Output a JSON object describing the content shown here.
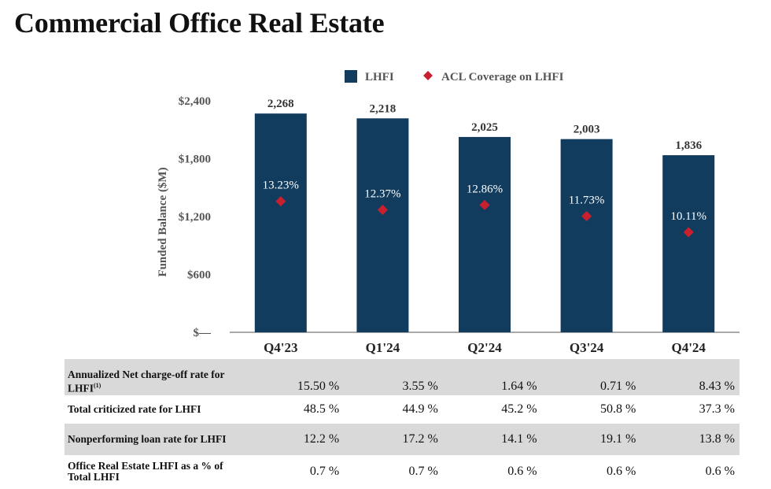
{
  "page_title": "Commercial Office Real Estate",
  "chart_data": {
    "type": "bar",
    "ylabel": "Funded Balance ($M)",
    "ylim": [
      0,
      2400
    ],
    "y_ticks": [
      0,
      600,
      1200,
      1800,
      2400
    ],
    "y_tick_labels": [
      "$—",
      "$600",
      "$1,200",
      "$1,800",
      "$2,400"
    ],
    "categories": [
      "Q4'23",
      "Q1'24",
      "Q2'24",
      "Q3'24",
      "Q4'24"
    ],
    "series": [
      {
        "name": "LHFI",
        "kind": "bar",
        "color": "#123c5e",
        "values": [
          2268,
          2218,
          2025,
          2003,
          1836
        ],
        "labels": [
          "2,268",
          "2,218",
          "2,025",
          "2,003",
          "1,836"
        ]
      },
      {
        "name": "ACL Coverage on LHFI",
        "kind": "marker",
        "color": "#c8202f",
        "values": [
          13.23,
          12.37,
          12.86,
          11.73,
          10.11
        ],
        "labels": [
          "13.23%",
          "12.37%",
          "12.86%",
          "11.73%",
          "10.11%"
        ]
      }
    ],
    "secondary_axis_hidden": true,
    "legend_position": "top"
  },
  "metrics_table": {
    "rows": [
      {
        "label": "Annualized Net charge-off rate for LHFI",
        "footnote": "(1)",
        "values": [
          "15.50 %",
          "3.55 %",
          "1.64 %",
          "0.71 %",
          "8.43 %"
        ]
      },
      {
        "label": "Total criticized rate for LHFI",
        "values": [
          "48.5 %",
          "44.9 %",
          "45.2 %",
          "50.8 %",
          "37.3 %"
        ]
      },
      {
        "label": "Nonperforming loan rate for LHFI",
        "values": [
          "12.2 %",
          "17.2 %",
          "14.1 %",
          "19.1 %",
          "13.8 %"
        ]
      },
      {
        "label": "Office Real Estate LHFI as a % of Total LHFI",
        "values": [
          "0.7 %",
          "0.7 %",
          "0.6 %",
          "0.6 %",
          "0.6 %"
        ]
      }
    ]
  }
}
